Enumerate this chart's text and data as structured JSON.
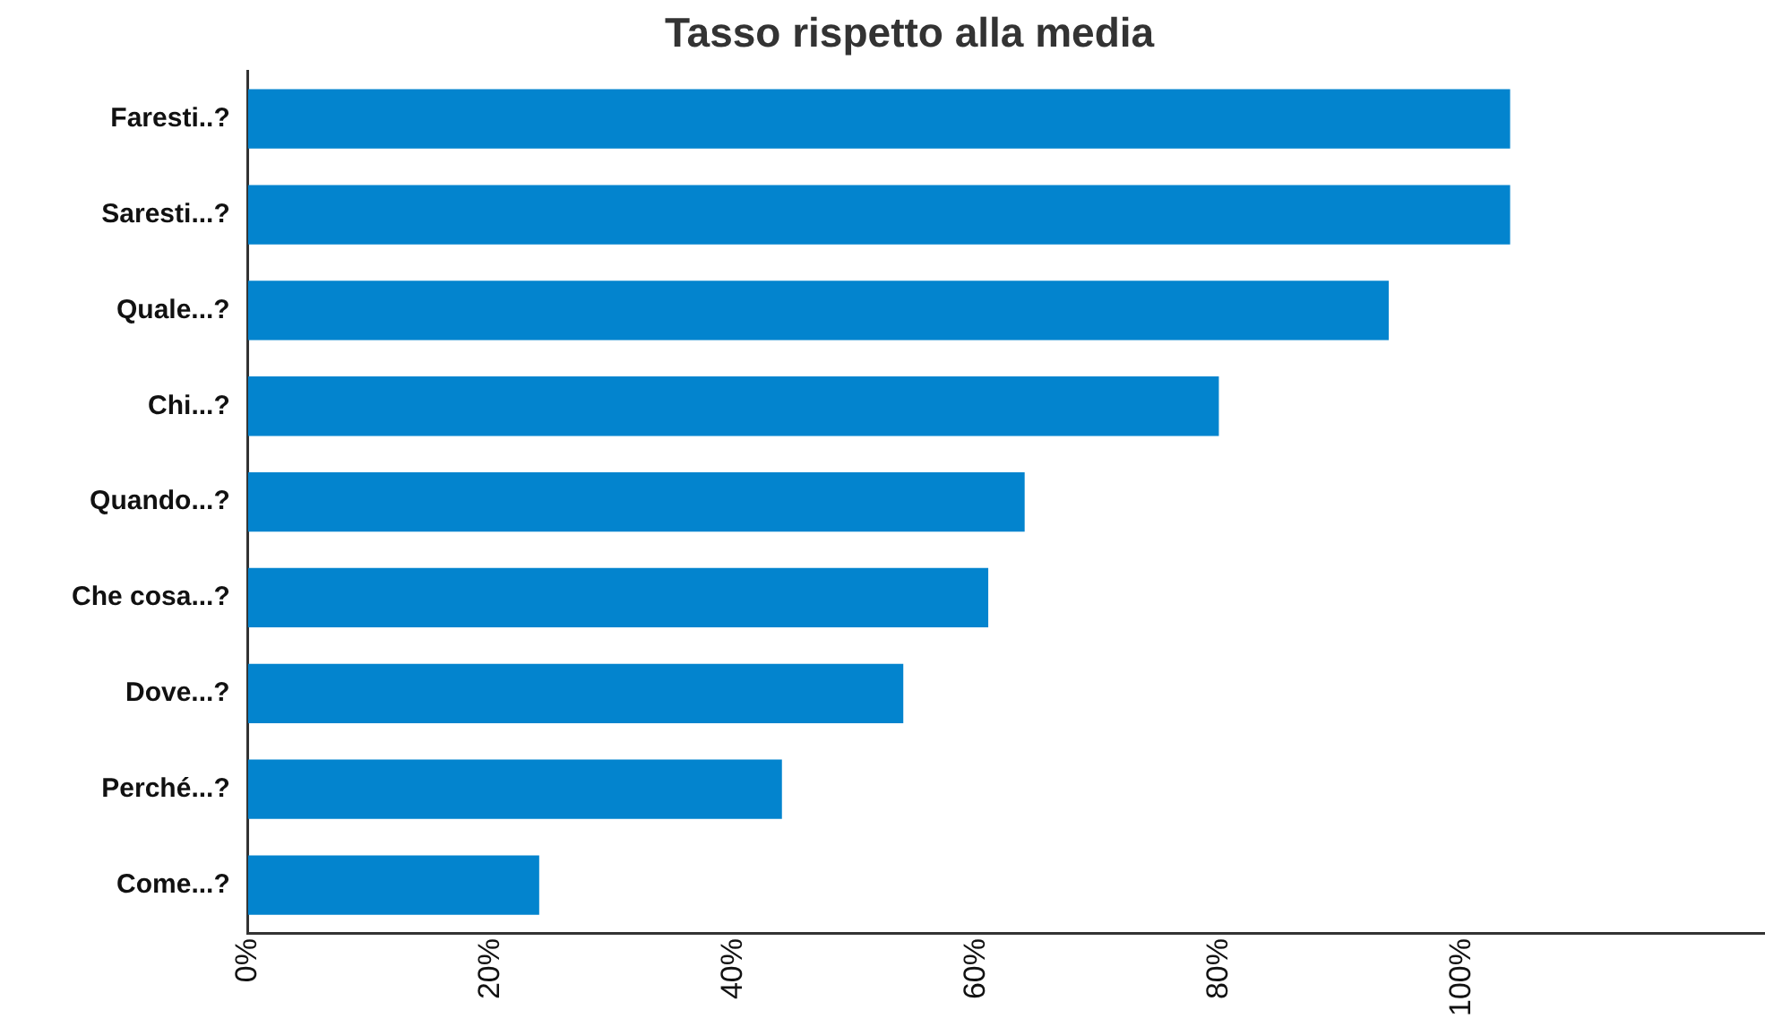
{
  "chart_data": {
    "type": "bar",
    "orientation": "horizontal",
    "title": "Tasso rispetto alla media",
    "categories": [
      "Faresti..?",
      "Saresti...?",
      "Quale...?",
      "Chi...?",
      "Quando...?",
      "Che cosa...?",
      "Dove...?",
      "Perché...?",
      "Come...?"
    ],
    "values": [
      104,
      104,
      94,
      80,
      64,
      61,
      54,
      44,
      24
    ],
    "color": "#0384ce",
    "xlim": [
      0,
      125
    ],
    "xticks": [
      {
        "value": 0,
        "label": "0%"
      },
      {
        "value": 20,
        "label": "20%"
      },
      {
        "value": 40,
        "label": "40%"
      },
      {
        "value": 60,
        "label": "60%"
      },
      {
        "value": 80,
        "label": "80%"
      },
      {
        "value": 100,
        "label": "100%"
      }
    ],
    "grid": false,
    "legend": false
  }
}
